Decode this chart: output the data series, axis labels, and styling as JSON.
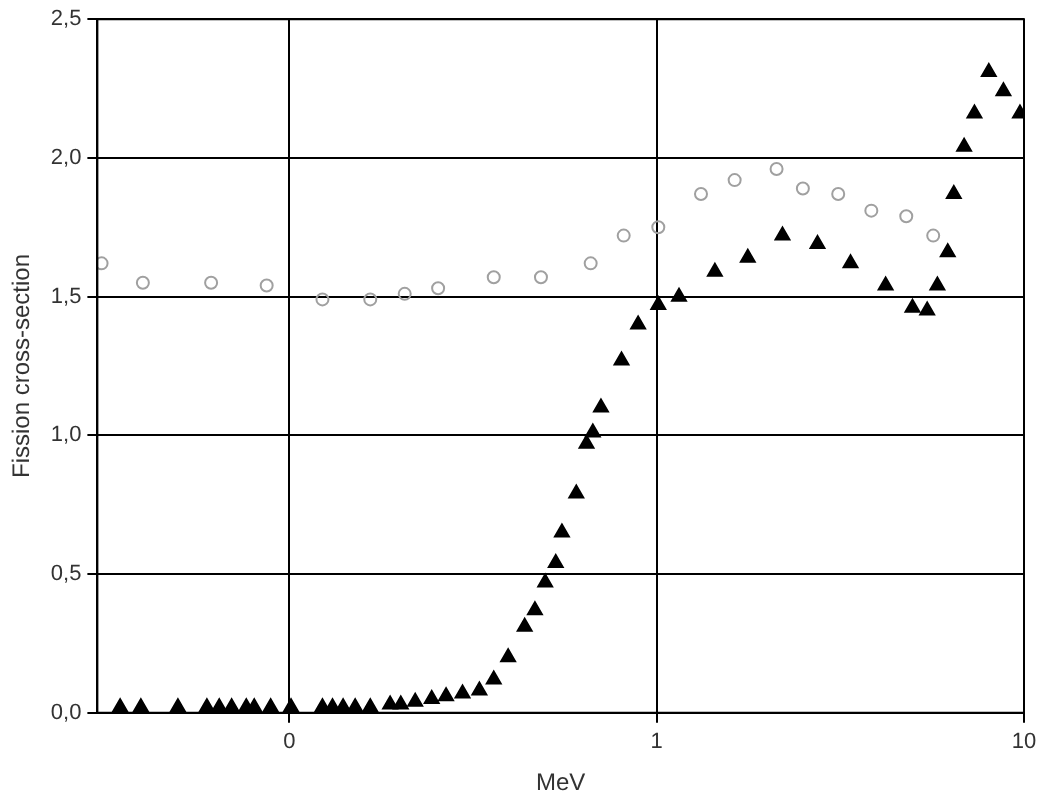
{
  "chart_data": {
    "type": "scatter",
    "xlabel": "MeV",
    "ylabel": "Fission cross-section",
    "log": "x",
    "grid": true,
    "legend": false,
    "xlim": [
      0.03,
      10
    ],
    "xticks": [
      {
        "value": 0.1,
        "label": "0"
      },
      1,
      10
    ],
    "ylim": [
      0,
      2.5
    ],
    "yticks": [
      {
        "value": 0,
        "label": "0,0"
      },
      {
        "value": 0.5,
        "label": "0,5"
      },
      {
        "value": 1,
        "label": "1,0"
      },
      {
        "value": 1.5,
        "label": "1,5"
      },
      {
        "value": 2,
        "label": "2,0"
      },
      {
        "value": 2.5,
        "label": "2,5"
      }
    ],
    "series": [
      {
        "color": "#a0a0a0",
        "marker": "circle",
        "x": [
          0.0308,
          0.0399,
          0.0612,
          0.0867,
          0.123,
          0.166,
          0.206,
          0.254,
          0.36,
          0.484,
          0.661,
          0.813,
          1.01,
          1.32,
          1.63,
          2.12,
          2.5,
          3.12,
          3.84,
          4.78,
          5.66
        ],
        "values": [
          1.62,
          1.55,
          1.55,
          1.54,
          1.49,
          1.49,
          1.51,
          1.53,
          1.57,
          1.57,
          1.62,
          1.72,
          1.75,
          1.87,
          1.92,
          1.96,
          1.89,
          1.87,
          1.81,
          1.79,
          1.72
        ]
      },
      {
        "color": "#000000",
        "marker": "triangle",
        "x": [
          0.0346,
          0.0394,
          0.0497,
          0.0596,
          0.0644,
          0.0696,
          0.0763,
          0.0802,
          0.0889,
          0.101,
          0.123,
          0.131,
          0.14,
          0.151,
          0.166,
          0.188,
          0.201,
          0.22,
          0.244,
          0.267,
          0.296,
          0.329,
          0.36,
          0.394,
          0.437,
          0.466,
          0.497,
          0.531,
          0.552,
          0.604,
          0.644,
          0.67,
          0.705,
          0.802,
          0.89,
          1.01,
          1.15,
          1.44,
          1.77,
          2.2,
          2.74,
          3.37,
          4.2,
          4.97,
          5.45,
          5.81,
          6.2,
          6.44,
          6.87,
          7.33,
          8.02,
          8.79,
          9.75
        ],
        "values": [
          0.02,
          0.02,
          0.02,
          0.02,
          0.02,
          0.02,
          0.02,
          0.02,
          0.02,
          0.02,
          0.02,
          0.02,
          0.02,
          0.02,
          0.02,
          0.03,
          0.03,
          0.04,
          0.05,
          0.06,
          0.07,
          0.08,
          0.12,
          0.2,
          0.31,
          0.37,
          0.47,
          0.54,
          0.65,
          0.79,
          0.97,
          1.01,
          1.1,
          1.27,
          1.4,
          1.47,
          1.5,
          1.59,
          1.64,
          1.72,
          1.69,
          1.62,
          1.54,
          1.46,
          1.45,
          1.54,
          1.66,
          1.87,
          2.04,
          2.16,
          2.31,
          2.24,
          2.16
        ]
      }
    ]
  }
}
